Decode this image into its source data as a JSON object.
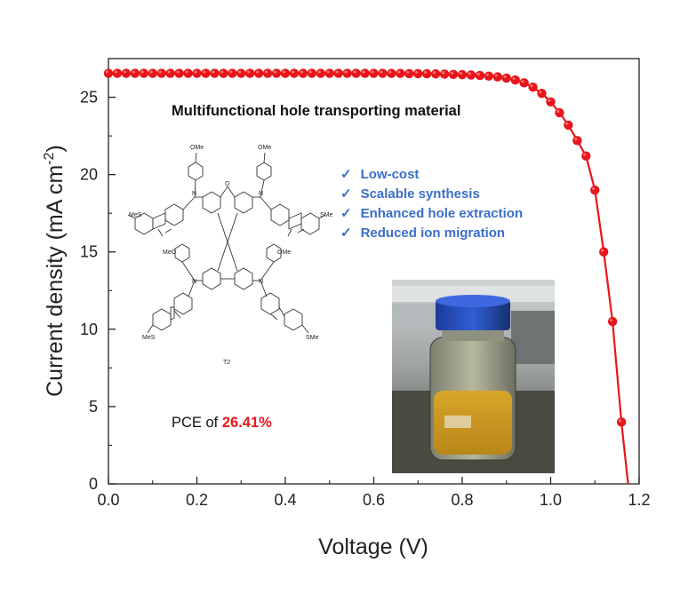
{
  "colors": {
    "curve": "#e8151b",
    "marker": "#e8151b",
    "feature_text": "#3a6fc9",
    "pce_value": "#e8151b",
    "axis": "#222222"
  },
  "chart_data": {
    "type": "line",
    "xlabel": "Voltage (V)",
    "ylabel": "Current density (mA cm",
    "ylabel_sup": "-2",
    "ylabel_close": ")",
    "xlim": [
      0,
      1.2
    ],
    "ylim": [
      0,
      27.5
    ],
    "xticks": [
      0.0,
      0.2,
      0.4,
      0.6,
      0.8,
      1.0,
      1.2
    ],
    "xtick_labels": [
      "0.0",
      "0.2",
      "0.4",
      "0.6",
      "0.8",
      "1.0",
      "1.2"
    ],
    "yticks": [
      0,
      5,
      10,
      15,
      20,
      25
    ],
    "ytick_labels": [
      "0",
      "5",
      "10",
      "15",
      "20",
      "25"
    ],
    "grid": false,
    "series": [
      {
        "x": [
          0.0,
          0.02,
          0.04,
          0.06,
          0.08,
          0.1,
          0.12,
          0.14,
          0.16,
          0.18,
          0.2,
          0.22,
          0.24,
          0.26,
          0.28,
          0.3,
          0.32,
          0.34,
          0.36,
          0.38,
          0.4,
          0.42,
          0.44,
          0.46,
          0.48,
          0.5,
          0.52,
          0.54,
          0.56,
          0.58,
          0.6,
          0.62,
          0.64,
          0.66,
          0.68,
          0.7,
          0.72,
          0.74,
          0.76,
          0.78,
          0.8,
          0.82,
          0.84,
          0.86,
          0.88,
          0.9,
          0.92,
          0.94,
          0.96,
          0.98,
          1.0,
          1.02,
          1.04,
          1.06,
          1.08,
          1.1,
          1.12,
          1.14,
          1.16,
          1.175
        ],
        "y": [
          26.55,
          26.55,
          26.55,
          26.55,
          26.55,
          26.55,
          26.55,
          26.55,
          26.55,
          26.55,
          26.55,
          26.55,
          26.55,
          26.55,
          26.55,
          26.55,
          26.55,
          26.55,
          26.55,
          26.55,
          26.55,
          26.55,
          26.55,
          26.55,
          26.55,
          26.55,
          26.55,
          26.55,
          26.55,
          26.55,
          26.55,
          26.55,
          26.54,
          26.54,
          26.53,
          26.53,
          26.52,
          26.51,
          26.5,
          26.48,
          26.46,
          26.44,
          26.41,
          26.37,
          26.32,
          26.24,
          26.12,
          25.93,
          25.65,
          25.25,
          24.7,
          24.0,
          23.2,
          22.2,
          21.2,
          19.0,
          15.0,
          10.5,
          4.0,
          0.0
        ],
        "markers_x": [
          0.0,
          0.02,
          0.04,
          0.06,
          0.08,
          0.1,
          0.12,
          0.14,
          0.16,
          0.18,
          0.2,
          0.22,
          0.24,
          0.26,
          0.28,
          0.3,
          0.32,
          0.34,
          0.36,
          0.38,
          0.4,
          0.42,
          0.44,
          0.46,
          0.48,
          0.5,
          0.52,
          0.54,
          0.56,
          0.58,
          0.6,
          0.62,
          0.64,
          0.66,
          0.68,
          0.7,
          0.72,
          0.74,
          0.76,
          0.78,
          0.8,
          0.82,
          0.84,
          0.86,
          0.88,
          0.9,
          0.92,
          0.94,
          0.96,
          0.98,
          1.0,
          1.02,
          1.04,
          1.06,
          1.08,
          1.1,
          1.12,
          1.14,
          1.16
        ],
        "markers_y": [
          26.55,
          26.55,
          26.55,
          26.55,
          26.55,
          26.55,
          26.55,
          26.55,
          26.55,
          26.55,
          26.55,
          26.55,
          26.55,
          26.55,
          26.55,
          26.55,
          26.55,
          26.55,
          26.55,
          26.55,
          26.55,
          26.55,
          26.55,
          26.55,
          26.55,
          26.55,
          26.55,
          26.55,
          26.55,
          26.55,
          26.55,
          26.55,
          26.54,
          26.54,
          26.53,
          26.53,
          26.52,
          26.51,
          26.5,
          26.48,
          26.46,
          26.44,
          26.41,
          26.37,
          26.32,
          26.24,
          26.12,
          25.93,
          25.65,
          25.25,
          24.7,
          24.0,
          23.2,
          22.2,
          21.2,
          19.0,
          15.0,
          10.5,
          4.0
        ]
      }
    ]
  },
  "inset": {
    "title": "Multifunctional hole transporting material",
    "molecule_label": "T2",
    "atom_labels": [
      "OMe",
      "OMe",
      "MeO",
      "OMe",
      "MeS",
      "SMe",
      "MeS",
      "SMe",
      "O",
      "N",
      "N",
      "N",
      "N"
    ],
    "features": [
      "Low-cost",
      "Scalable synthesis",
      "Enhanced hole extraction",
      "Reduced ion migration"
    ],
    "checkmark": "✓",
    "pce_prefix": "PCE of ",
    "pce_value": "26.41%"
  }
}
